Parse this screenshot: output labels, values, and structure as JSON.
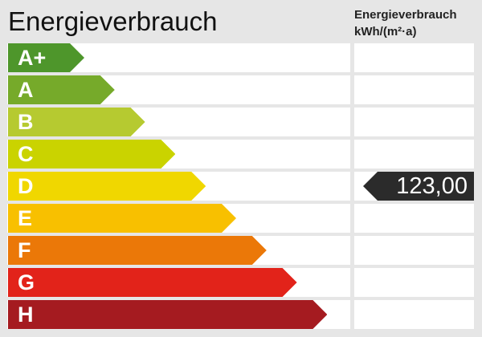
{
  "header": {
    "title": "Energieverbrauch",
    "unit_line1": "Energieverbrauch",
    "unit_line2": "kWh/(m²·a)"
  },
  "classes": [
    {
      "label": "A+",
      "color": "#4e962b"
    },
    {
      "label": "A",
      "color": "#76aa2a"
    },
    {
      "label": "B",
      "color": "#b6ca30"
    },
    {
      "label": "C",
      "color": "#cad300"
    },
    {
      "label": "D",
      "color": "#f0d700"
    },
    {
      "label": "E",
      "color": "#f8c000"
    },
    {
      "label": "F",
      "color": "#eb7808"
    },
    {
      "label": "G",
      "color": "#e2231a"
    },
    {
      "label": "H",
      "color": "#a51b20"
    }
  ],
  "indicator": {
    "value": "123,00",
    "class": "D",
    "color": "#2b2b2b"
  }
}
